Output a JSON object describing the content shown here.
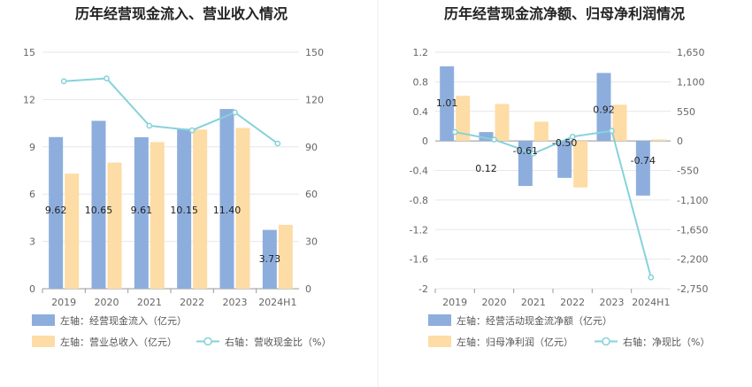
{
  "colors": {
    "bar_primary": "#8DAEDD",
    "bar_secondary": "#FDDCA5",
    "line": "#86D2DA",
    "grid": "#E6E6EE",
    "divider": "#EEEEEE"
  },
  "chart_data": [
    {
      "type": "bar",
      "title": "历年经营现金流入、营业收入情况",
      "categories": [
        "2019",
        "2020",
        "2021",
        "2022",
        "2023",
        "2024H1"
      ],
      "left_axis": {
        "ylim": [
          0,
          15
        ],
        "ticks": [
          "0",
          "3",
          "6",
          "9",
          "12",
          "15"
        ]
      },
      "right_axis": {
        "ylim": [
          0,
          150
        ],
        "ticks": [
          "0",
          "30",
          "60",
          "90",
          "120",
          "150"
        ]
      },
      "series": [
        {
          "name": "左轴：经营现金流入（亿元）",
          "kind": "bar",
          "axis": "left",
          "values": [
            9.62,
            10.65,
            9.61,
            10.15,
            11.4,
            3.73
          ],
          "labels": [
            "9.62",
            "10.65",
            "9.61",
            "10.15",
            "11.40",
            "3.73"
          ]
        },
        {
          "name": "左轴：营业总收入（亿元）",
          "kind": "bar",
          "axis": "left",
          "values": [
            7.3,
            8.0,
            9.3,
            10.1,
            10.2,
            4.05
          ]
        },
        {
          "name": "右轴：营收现金比（%）",
          "kind": "line",
          "axis": "right",
          "values": [
            131.6,
            133.4,
            103.4,
            100.5,
            111.8,
            92.1
          ]
        }
      ]
    },
    {
      "type": "bar",
      "title": "历年经营现金流净额、归母净利润情况",
      "categories": [
        "2019",
        "2020",
        "2021",
        "2022",
        "2023",
        "2024H1"
      ],
      "left_axis": {
        "ylim": [
          -2,
          1.2
        ],
        "ticks": [
          "1.2",
          "0.8",
          "0.4",
          "0",
          "-0.4",
          "-0.8",
          "-1.2",
          "-1.6",
          "-2"
        ]
      },
      "right_axis": {
        "ylim": [
          -2750,
          1650
        ],
        "ticks": [
          "1,650",
          "1,100",
          "550",
          "0",
          "-550",
          "-1,100",
          "-1,650",
          "-2,200",
          "-2,750"
        ]
      },
      "series": [
        {
          "name": "左轴：经营活动现金流净额（亿元）",
          "kind": "bar",
          "axis": "left",
          "values": [
            1.01,
            0.12,
            -0.61,
            -0.5,
            0.92,
            -0.74
          ],
          "labels": [
            "1.01",
            "0.12",
            "-0.61",
            "-0.50",
            "0.92",
            "-0.74"
          ]
        },
        {
          "name": "左轴：归母净利润（亿元）",
          "kind": "bar",
          "axis": "left",
          "values": [
            0.61,
            0.5,
            0.26,
            -0.63,
            0.49,
            0.02
          ]
        },
        {
          "name": "右轴：净现比（%）",
          "kind": "line",
          "axis": "right",
          "values": [
            165.6,
            24.0,
            -234.6,
            79.4,
            187.8,
            -2540
          ]
        }
      ]
    }
  ]
}
